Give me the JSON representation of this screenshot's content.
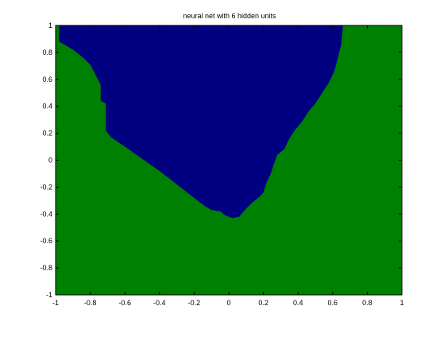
{
  "chart_data": {
    "type": "heatmap",
    "title": "neural net with 6 hidden units",
    "xlabel": "",
    "ylabel": "",
    "xlim": [
      -1,
      1
    ],
    "ylim": [
      -1,
      1
    ],
    "grid": false,
    "xticks": [
      -1,
      -0.8,
      -0.6,
      -0.4,
      -0.2,
      0,
      0.2,
      0.4,
      0.6,
      0.8,
      1
    ],
    "yticks": [
      -1,
      -0.8,
      -0.6,
      -0.4,
      -0.2,
      0,
      0.2,
      0.4,
      0.6,
      0.8,
      1
    ],
    "xtick_labels": [
      "-1",
      "-0.8",
      "-0.6",
      "-0.4",
      "-0.2",
      "0",
      "0.2",
      "0.4",
      "0.6",
      "0.8",
      "1"
    ],
    "ytick_labels": [
      "-1",
      "-0.8",
      "-0.6",
      "-0.4",
      "-0.2",
      "0",
      "0.2",
      "0.4",
      "0.6",
      "0.8",
      "1"
    ],
    "regions": [
      {
        "class": "background",
        "color": "#008000"
      },
      {
        "class": "upper",
        "color": "#000080",
        "boundary": [
          [
            -0.98,
            1.0
          ],
          [
            -0.98,
            0.88
          ],
          [
            -0.9,
            0.82
          ],
          [
            -0.84,
            0.76
          ],
          [
            -0.8,
            0.71
          ],
          [
            -0.78,
            0.66
          ],
          [
            -0.74,
            0.56
          ],
          [
            -0.74,
            0.44
          ],
          [
            -0.71,
            0.42
          ],
          [
            -0.71,
            0.22
          ],
          [
            -0.68,
            0.17
          ],
          [
            -0.6,
            0.1
          ],
          [
            -0.5,
            0.01
          ],
          [
            -0.4,
            -0.08
          ],
          [
            -0.3,
            -0.18
          ],
          [
            -0.2,
            -0.28
          ],
          [
            -0.14,
            -0.34
          ],
          [
            -0.1,
            -0.37
          ],
          [
            -0.05,
            -0.38
          ],
          [
            -0.02,
            -0.41
          ],
          [
            0.02,
            -0.43
          ],
          [
            0.06,
            -0.42
          ],
          [
            0.1,
            -0.36
          ],
          [
            0.14,
            -0.31
          ],
          [
            0.18,
            -0.27
          ],
          [
            0.2,
            -0.24
          ],
          [
            0.22,
            -0.16
          ],
          [
            0.24,
            -0.11
          ],
          [
            0.26,
            -0.03
          ],
          [
            0.28,
            0.04
          ],
          [
            0.32,
            0.08
          ],
          [
            0.35,
            0.16
          ],
          [
            0.38,
            0.22
          ],
          [
            0.42,
            0.28
          ],
          [
            0.46,
            0.36
          ],
          [
            0.5,
            0.42
          ],
          [
            0.54,
            0.5
          ],
          [
            0.58,
            0.58
          ],
          [
            0.61,
            0.66
          ],
          [
            0.63,
            0.76
          ],
          [
            0.65,
            0.86
          ],
          [
            0.66,
            1.0
          ]
        ]
      }
    ]
  }
}
